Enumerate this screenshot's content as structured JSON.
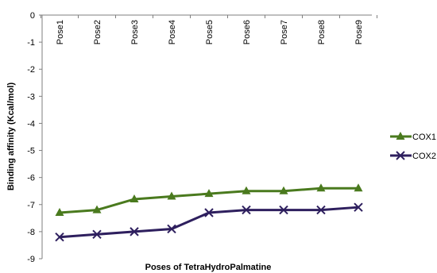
{
  "chart_data": {
    "type": "line",
    "categories": [
      "Pose1",
      "Pose2",
      "Pose3",
      "Pose4",
      "Pose5",
      "Pose6",
      "Pose7",
      "Pose8",
      "Pose9"
    ],
    "series": [
      {
        "name": "COX1",
        "marker": "triangle",
        "color": "#4a7a1e",
        "values": [
          -7.3,
          -7.2,
          -6.8,
          -6.7,
          -6.6,
          -6.5,
          -6.5,
          -6.4,
          -6.4
        ]
      },
      {
        "name": "COX2",
        "marker": "x",
        "color": "#2e1f5e",
        "values": [
          -8.2,
          -8.1,
          -8.0,
          -7.9,
          -7.3,
          -7.2,
          -7.2,
          -7.2,
          -7.1
        ]
      }
    ],
    "xlabel": "Poses of TetraHydroPalmatine",
    "ylabel": "Binding affinity (Kcal/mol)",
    "ylim": [
      -9,
      0
    ],
    "yticks": [
      "0",
      "-1",
      "-2",
      "-3",
      "-4",
      "-5",
      "-6",
      "-7",
      "-8",
      "-9"
    ],
    "grid": false,
    "legend": "right"
  }
}
